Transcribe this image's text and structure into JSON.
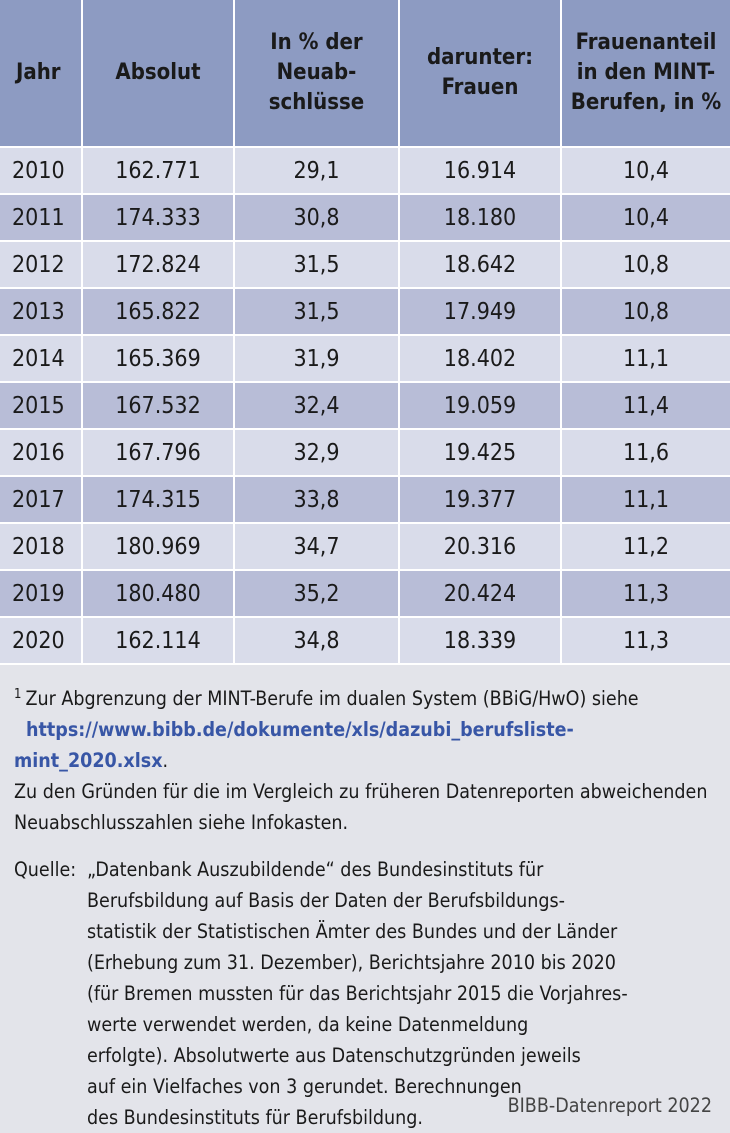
{
  "table": {
    "headers": {
      "jahr": "Jahr",
      "absolut": "Absolut",
      "anteil": [
        "In % der",
        "Neuab-",
        "schlüsse"
      ],
      "frauen": [
        "darunter:",
        "Frauen"
      ],
      "frauenanteil": [
        "Frauenanteil",
        "in den MINT-",
        "Berufen, in %"
      ]
    },
    "rows": [
      {
        "jahr": "2010",
        "absolut": "162.771",
        "anteil": "29,1",
        "frauen": "16.914",
        "frauenanteil": "10,4"
      },
      {
        "jahr": "2011",
        "absolut": "174.333",
        "anteil": "30,8",
        "frauen": "18.180",
        "frauenanteil": "10,4"
      },
      {
        "jahr": "2012",
        "absolut": "172.824",
        "anteil": "31,5",
        "frauen": "18.642",
        "frauenanteil": "10,8"
      },
      {
        "jahr": "2013",
        "absolut": "165.822",
        "anteil": "31,5",
        "frauen": "17.949",
        "frauenanteil": "10,8"
      },
      {
        "jahr": "2014",
        "absolut": "165.369",
        "anteil": "31,9",
        "frauen": "18.402",
        "frauenanteil": "11,1"
      },
      {
        "jahr": "2015",
        "absolut": "167.532",
        "anteil": "32,4",
        "frauen": "19.059",
        "frauenanteil": "11,4"
      },
      {
        "jahr": "2016",
        "absolut": "167.796",
        "anteil": "32,9",
        "frauen": "19.425",
        "frauenanteil": "11,6"
      },
      {
        "jahr": "2017",
        "absolut": "174.315",
        "anteil": "33,8",
        "frauen": "19.377",
        "frauenanteil": "11,1"
      },
      {
        "jahr": "2018",
        "absolut": "180.969",
        "anteil": "34,7",
        "frauen": "20.316",
        "frauenanteil": "11,2"
      },
      {
        "jahr": "2019",
        "absolut": "180.480",
        "anteil": "35,2",
        "frauen": "20.424",
        "frauenanteil": "11,3"
      },
      {
        "jahr": "2020",
        "absolut": "162.114",
        "anteil": "34,8",
        "frauen": "18.339",
        "frauenanteil": "11,3"
      }
    ]
  },
  "footnote": {
    "marker": "1",
    "text": "Zur Abgrenzung der MINT-Berufe im dualen System (BBiG/HwO) siehe",
    "link": "https://www.bibb.de/dokumente/xls/dazubi_berufsliste-mint_2020.xlsx",
    "link_after": ".",
    "continuation": [
      "Zu den Gründen für die im Vergleich zu früheren Datenreporten abweichenden",
      "Neuabschlusszahlen siehe Infokasten."
    ]
  },
  "source": {
    "label": "Quelle:",
    "lines": [
      "„Datenbank Auszubildende“ des Bundesinstituts für",
      "Berufsbildung auf Basis der Daten der Berufsbildungs-",
      "statistik der Statistischen Ämter des Bundes und der Länder",
      "(Erhebung zum 31. Dezember), Berichtsjahre 2010 bis 2020",
      "(für Bremen mussten für das Berichtsjahr 2015 die Vorjahres-",
      "werte verwendet werden, da keine Datenmeldung",
      "erfolgte). Absolutwerte aus Datenschutzgründen jeweils",
      "auf ein Vielfaches von 3 gerundet. Berechnungen",
      "des Bundesinstituts für Berufsbildung."
    ]
  },
  "credit": "BIBB-Datenreport 2022"
}
